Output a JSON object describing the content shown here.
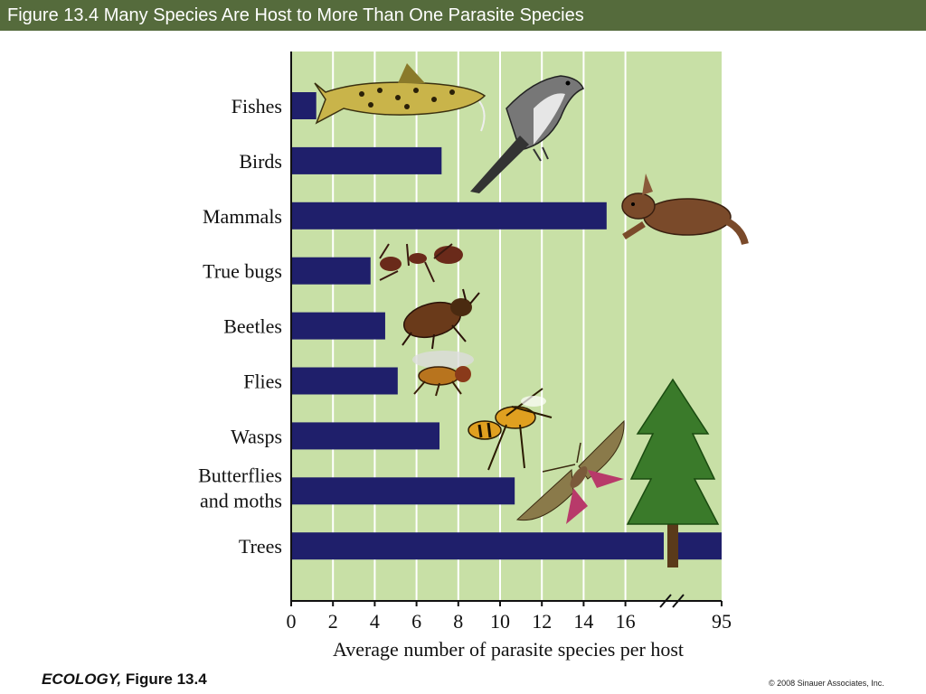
{
  "slide": {
    "title": "Figure 13.4  Many Species Are Host to More Than One Parasite Species",
    "footer_book": "ECOLOGY,",
    "footer_figure": " Figure 13.4",
    "copyright": "© 2008 Sinauer Associates, Inc."
  },
  "colors": {
    "title_bar": "#556b3c",
    "plot_background": "#c8e0a6",
    "bar": "#1f1f6b",
    "grid": "#ffffff"
  },
  "chart_data": {
    "type": "bar",
    "orientation": "horizontal",
    "categories": [
      "Fishes",
      "Birds",
      "Mammals",
      "True bugs",
      "Beetles",
      "Flies",
      "Wasps",
      "Butterflies\nand moths",
      "Trees"
    ],
    "values": [
      1.2,
      7.2,
      15.1,
      3.8,
      4.5,
      5.1,
      7.1,
      10.7,
      95
    ],
    "xlabel": "Average number of parasite species per host",
    "xticks": [
      "0",
      "2",
      "4",
      "6",
      "8",
      "10",
      "12",
      "14",
      "16",
      "95"
    ],
    "xlim": [
      0,
      95
    ],
    "axis_break": true,
    "grid": "vertical",
    "illustrations": [
      "catfish-icon",
      "bird-icon",
      "rabbit-icon",
      "ant-icon",
      "beetle-icon",
      "fly-icon",
      "wasp-icon",
      "moth-icon",
      "tree-icon"
    ]
  }
}
